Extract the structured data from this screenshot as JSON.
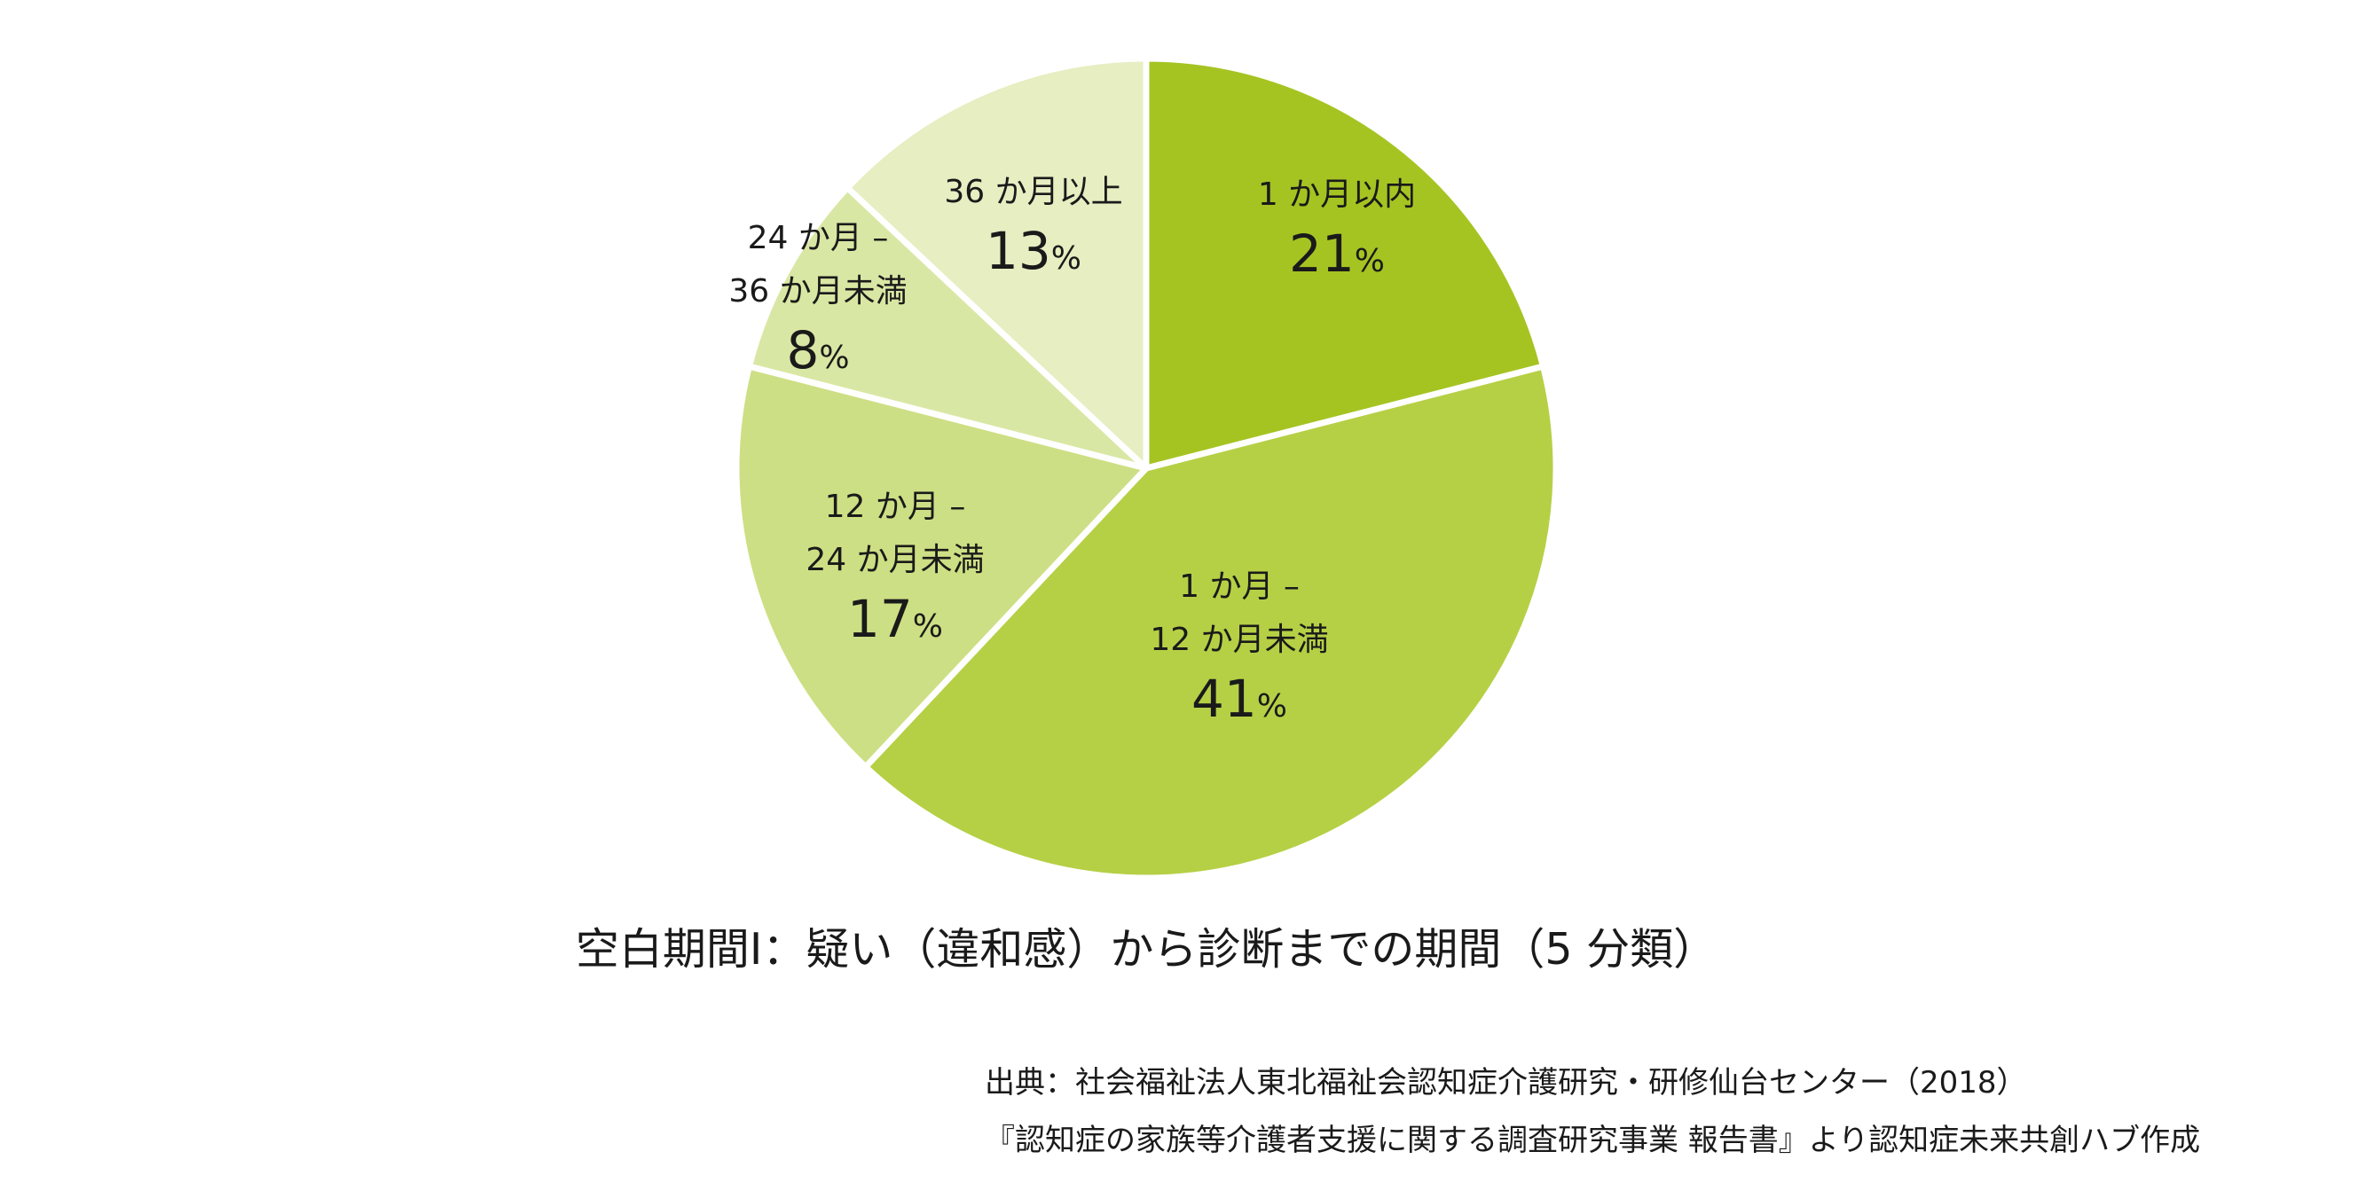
{
  "chart_data": {
    "type": "pie",
    "title": "空白期間Ⅰ：疑い（違和感）から診断までの期間（5 分類）",
    "slices": [
      {
        "label_lines": [
          "1 か月以内"
        ],
        "value": 21,
        "value_text": "21",
        "unit": "%",
        "color": "#a5c422"
      },
      {
        "label_lines": [
          "1 か月 –",
          "12 か月未満"
        ],
        "value": 41,
        "value_text": "41",
        "unit": "%",
        "color": "#b5d045"
      },
      {
        "label_lines": [
          "12 か月 –",
          "24 か月未満"
        ],
        "value": 17,
        "value_text": "17",
        "unit": "%",
        "color": "#cddf84"
      },
      {
        "label_lines": [
          "24 か月 –",
          "36 か月未満"
        ],
        "value": 8,
        "value_text": "8",
        "unit": "%",
        "color": "#d9e7a4"
      },
      {
        "label_lines": [
          "36 か月以上"
        ],
        "value": 13,
        "value_text": "13",
        "unit": "%",
        "color": "#e6eec2"
      }
    ],
    "start_angle_deg": 0,
    "direction": "clockwise",
    "source_lines": [
      "出典：社会福祉法人東北福祉会認知症介護研究・研修仙台センター（2018）",
      "『認知症の家族等介護者支援に関する調査研究事業 報告書』より認知症未来共創ハブ作成"
    ]
  }
}
